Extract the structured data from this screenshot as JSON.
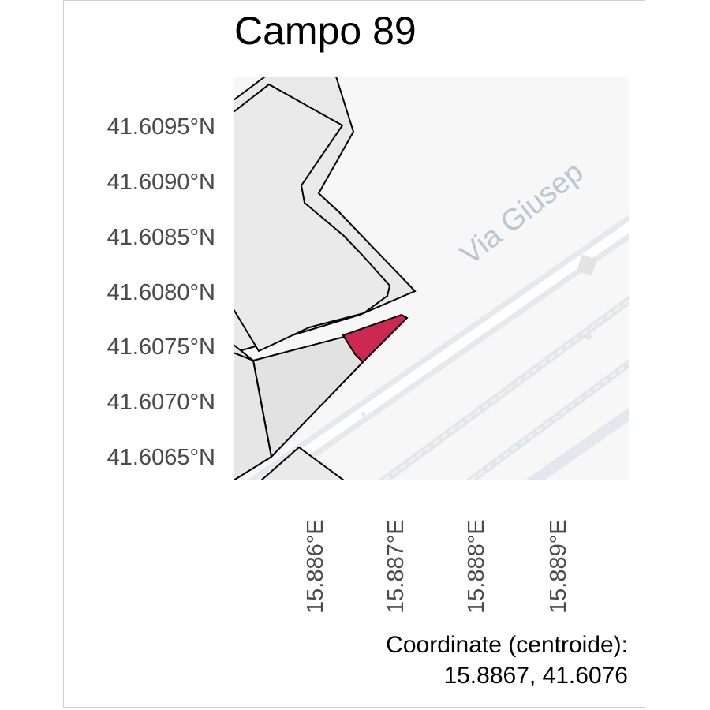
{
  "title": "Campo 89",
  "map": {
    "street_label": "Via Giusep",
    "highlight_color": "#cc2852",
    "parcel_fill": "#e9e9e9",
    "basemap_bg": "#f7f7f7"
  },
  "axes": {
    "y_ticks": [
      "41.6095°N",
      "41.6090°N",
      "41.6085°N",
      "41.6080°N",
      "41.6075°N",
      "41.6070°N",
      "41.6065°N"
    ],
    "x_ticks": [
      "15.886°E",
      "15.887°E",
      "15.888°E",
      "15.889°E"
    ]
  },
  "caption": {
    "line1": "Coordinate (centroide):",
    "line2": "15.8867, 41.6076"
  }
}
